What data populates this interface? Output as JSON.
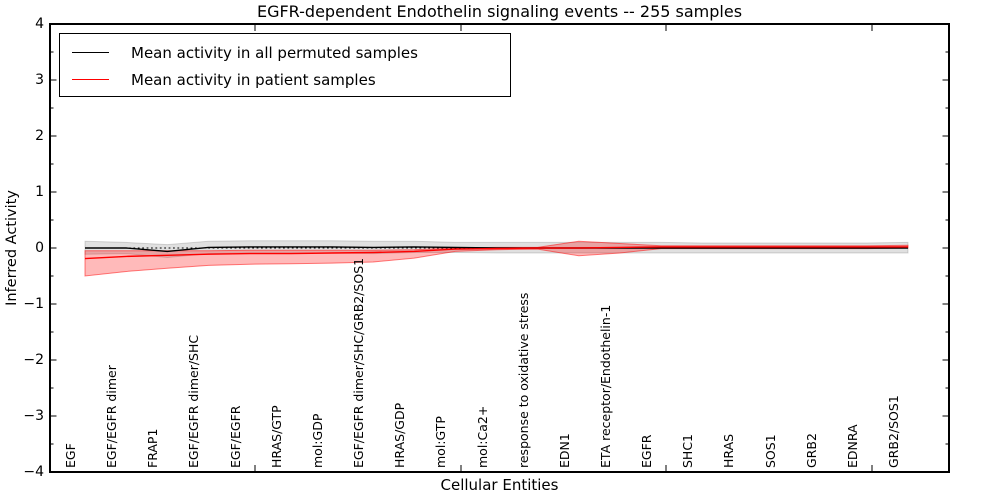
{
  "chart_data": {
    "type": "line",
    "title": "EGFR-dependent Endothelin signaling events -- 255 samples",
    "xlabel": "Cellular Entities",
    "ylabel": "Inferred Activity",
    "ylim": [
      -4,
      4
    ],
    "yticks": [
      4,
      3,
      2,
      1,
      0,
      -1,
      -2,
      -3,
      -4
    ],
    "grid": false,
    "legend_position": "upper left",
    "zero_line": {
      "y": 0,
      "style": "dotted",
      "color": "#000000"
    },
    "categories": [
      "EGF",
      "EGF/EGFR dimer",
      "FRAP1",
      "EGF/EGFR dimer/SHC",
      "EGF/EGFR",
      "HRAS/GTP",
      "mol:GDP",
      "EGF/EGFR dimer/SHC/GRB2/SOS1",
      "HRAS/GDP",
      "mol:GTP",
      "mol:Ca2+",
      "response to oxidative stress",
      "EDN1",
      "ETA receptor/Endothelin-1",
      "EGFR",
      "SHC1",
      "HRAS",
      "SOS1",
      "GRB2",
      "EDNRA",
      "GRB2/SOS1"
    ],
    "series": [
      {
        "name": "Mean activity in all permuted samples",
        "color": "#000000",
        "values": [
          0.0,
          0.0,
          -0.06,
          0.01,
          0.02,
          0.02,
          0.02,
          0.01,
          0.02,
          0.01,
          0.0,
          0.0,
          0.0,
          0.0,
          0.0,
          0.0,
          0.0,
          0.0,
          0.0,
          0.0,
          0.0
        ]
      },
      {
        "name": "Mean activity in patient samples",
        "color": "#ff0000",
        "values": [
          -0.19,
          -0.15,
          -0.13,
          -0.11,
          -0.1,
          -0.1,
          -0.09,
          -0.08,
          -0.06,
          -0.02,
          -0.01,
          0.0,
          0.0,
          0.01,
          0.02,
          0.02,
          0.02,
          0.02,
          0.02,
          0.02,
          0.02
        ]
      }
    ],
    "bands": [
      {
        "name": "permuted samples activity range",
        "fill": "rgba(0,0,0,0.12)",
        "edge": "rgba(0,0,0,0.15)",
        "upper": [
          0.12,
          0.1,
          0.06,
          0.12,
          0.13,
          0.13,
          0.13,
          0.12,
          0.12,
          0.1,
          0.1,
          0.1,
          0.1,
          0.1,
          0.1,
          0.09,
          0.09,
          0.09,
          0.09,
          0.09,
          0.1
        ],
        "lower": [
          -0.11,
          -0.1,
          -0.17,
          -0.1,
          -0.09,
          -0.09,
          -0.09,
          -0.1,
          -0.08,
          -0.08,
          -0.09,
          -0.09,
          -0.09,
          -0.09,
          -0.09,
          -0.09,
          -0.09,
          -0.09,
          -0.09,
          -0.09,
          -0.09
        ]
      },
      {
        "name": "patient samples activity range",
        "fill": "rgba(255,0,0,0.27)",
        "edge": "rgba(255,0,0,0.50)",
        "upper": [
          -0.05,
          -0.05,
          -0.05,
          -0.05,
          -0.04,
          -0.04,
          -0.04,
          -0.04,
          -0.03,
          0.0,
          0.01,
          0.01,
          0.12,
          0.08,
          0.04,
          0.04,
          0.04,
          0.04,
          0.04,
          0.04,
          0.05
        ],
        "lower": [
          -0.5,
          -0.42,
          -0.36,
          -0.31,
          -0.29,
          -0.28,
          -0.27,
          -0.25,
          -0.18,
          -0.06,
          -0.03,
          -0.02,
          -0.14,
          -0.09,
          -0.01,
          -0.01,
          -0.01,
          -0.01,
          -0.01,
          -0.01,
          0.0
        ]
      }
    ]
  }
}
